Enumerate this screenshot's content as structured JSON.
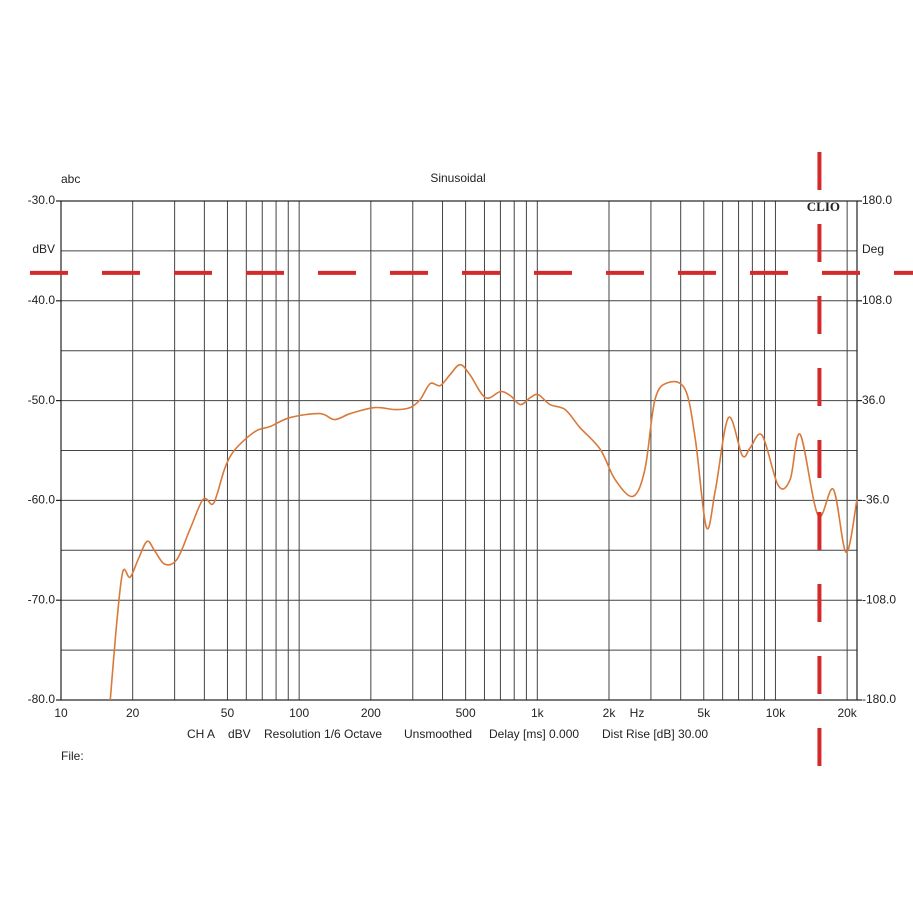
{
  "chart_data": {
    "type": "line",
    "title": "Sinusoidal",
    "corner_label": "abc",
    "ylabel": "dBV",
    "y2label": "Deg",
    "brand": "CLIO",
    "xunit": "Hz",
    "file_label": "File:",
    "footer": [
      "CH A",
      "dBV",
      "Resolution 1/6 Octave",
      "Unsmoothed",
      "Delay [ms] 0.000",
      "Dist Rise [dB] 30.00"
    ],
    "xscale": "log",
    "grid": true,
    "xlim": [
      10,
      22000
    ],
    "xticks": [
      10,
      20,
      50,
      100,
      200,
      500,
      {
        "value": 1000,
        "label": "1k"
      },
      {
        "value": 2000,
        "label": "2k"
      },
      {
        "value": 5000,
        "label": "5k"
      },
      {
        "value": 10000,
        "label": "10k"
      },
      {
        "value": 20000,
        "label": "20k"
      }
    ],
    "xminorticks": [
      30,
      40,
      60,
      70,
      80,
      90,
      300,
      400,
      600,
      700,
      800,
      900,
      3000,
      4000,
      6000,
      7000,
      8000,
      9000
    ],
    "ylim": [
      -80,
      -30
    ],
    "yticks": [
      {
        "value": -30,
        "label": "-30.0"
      },
      {
        "value": -40,
        "label": "-40.0"
      },
      {
        "value": -50,
        "label": "-50.0"
      },
      {
        "value": -60,
        "label": "-60.0"
      },
      {
        "value": -70,
        "label": "-70.0"
      },
      {
        "value": -80,
        "label": "-80.0"
      }
    ],
    "yminorticks": [
      -35,
      -45,
      -55,
      -65,
      -75
    ],
    "y2lim": [
      -180,
      180
    ],
    "y2ticks": [
      {
        "value": 180,
        "label": "180.0"
      },
      {
        "value": 108,
        "label": "108.0"
      },
      {
        "value": 36,
        "label": "36.0"
      },
      {
        "value": -36,
        "label": "-36.0"
      },
      {
        "value": -108,
        "label": "-108.0"
      },
      {
        "value": -180,
        "label": "-180.0"
      }
    ],
    "reference_lines": {
      "y": -37.2,
      "x": 15300,
      "color": "#d42a2a"
    },
    "series": [
      {
        "name": "CH A",
        "color": "#d9793a",
        "x": [
          16.1,
          17.2,
          18.2,
          19.5,
          21.1,
          23.0,
          24.8,
          27.3,
          30.7,
          34.8,
          39.5,
          43.1,
          45.2,
          48.9,
          53.8,
          65.3,
          75.5,
          91.6,
          122,
          141,
          164,
          208,
          253,
          292,
          322,
          355,
          391,
          430,
          474,
          521,
          605,
          700,
          770,
          850,
          935,
          1010,
          1130,
          1310,
          1510,
          1840,
          2120,
          2520,
          2830,
          3120,
          3540,
          4180,
          4610,
          5130,
          5600,
          6350,
          7260,
          7840,
          8800,
          10270,
          11530,
          12700,
          15100,
          17500,
          19800,
          22000
        ],
        "values": [
          -80,
          -71.9,
          -67.1,
          -67.7,
          -65.9,
          -64.1,
          -65.1,
          -66.4,
          -65.9,
          -62.9,
          -59.9,
          -60.4,
          -59.4,
          -56.7,
          -54.9,
          -53.1,
          -52.6,
          -51.7,
          -51.3,
          -51.9,
          -51.3,
          -50.7,
          -50.9,
          -50.7,
          -49.9,
          -48.3,
          -48.5,
          -47.4,
          -46.4,
          -47.4,
          -49.7,
          -49.1,
          -49.5,
          -50.4,
          -49.7,
          -49.4,
          -50.4,
          -50.9,
          -52.7,
          -54.9,
          -57.9,
          -59.6,
          -56.9,
          -49.9,
          -48.2,
          -48.9,
          -53.9,
          -62.7,
          -58.9,
          -51.7,
          -55.5,
          -54.7,
          -53.5,
          -58.5,
          -57.9,
          -53.4,
          -61.5,
          -58.9,
          -65.2,
          -59.9
        ]
      }
    ]
  }
}
